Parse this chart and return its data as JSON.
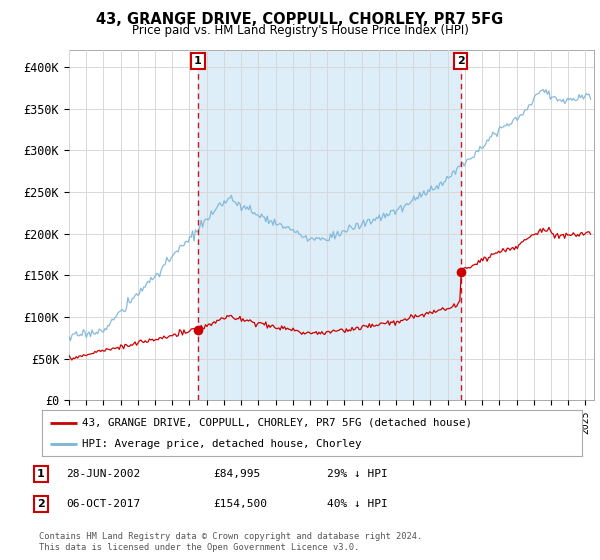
{
  "title": "43, GRANGE DRIVE, COPPULL, CHORLEY, PR7 5FG",
  "subtitle": "Price paid vs. HM Land Registry's House Price Index (HPI)",
  "xlim_start": 1995.0,
  "xlim_end": 2025.5,
  "ylim_min": 0,
  "ylim_max": 420000,
  "yticks": [
    0,
    50000,
    100000,
    150000,
    200000,
    250000,
    300000,
    350000,
    400000
  ],
  "ytick_labels": [
    "£0",
    "£50K",
    "£100K",
    "£150K",
    "£200K",
    "£250K",
    "£300K",
    "£350K",
    "£400K"
  ],
  "purchase1_date": 2002.49,
  "purchase1_price": 84995,
  "purchase2_date": 2017.76,
  "purchase2_price": 154500,
  "vline1_x": 2002.49,
  "vline2_x": 2017.76,
  "hpi_color": "#7ab4d8",
  "hpi_fill_color": "#ddeef8",
  "price_color": "#cc0000",
  "vline_color": "#cc0000",
  "legend_line1": "43, GRANGE DRIVE, COPPULL, CHORLEY, PR7 5FG (detached house)",
  "legend_line2": "HPI: Average price, detached house, Chorley",
  "footer": "Contains HM Land Registry data © Crown copyright and database right 2024.\nThis data is licensed under the Open Government Licence v3.0.",
  "background_color": "#ffffff",
  "grid_color": "#d8d8d8"
}
